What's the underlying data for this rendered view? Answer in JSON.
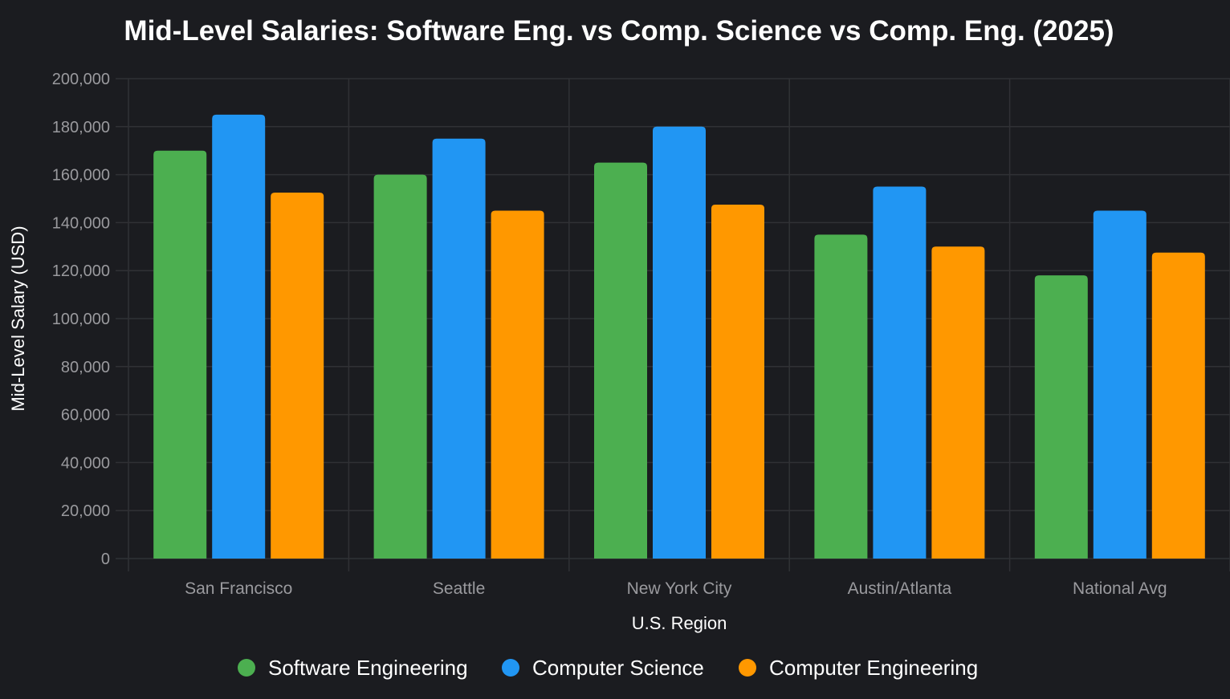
{
  "chart_data": {
    "type": "bar",
    "title": "Mid-Level Salaries: Software Eng. vs Comp. Science vs Comp. Eng. (2025)",
    "xlabel": "U.S. Region",
    "ylabel": "Mid-Level Salary (USD)",
    "categories": [
      "San Francisco",
      "Seattle",
      "New York City",
      "Austin/Atlanta",
      "National Avg"
    ],
    "ylim": [
      0,
      200000
    ],
    "yticks": [
      "0",
      "20,000",
      "40,000",
      "60,000",
      "80,000",
      "100,000",
      "120,000",
      "140,000",
      "160,000",
      "180,000",
      "200,000"
    ],
    "grid": true,
    "legend_position": "bottom",
    "series": [
      {
        "name": "Software Engineering",
        "color": "#4caf50",
        "values": [
          170000,
          160000,
          165000,
          135000,
          118000
        ]
      },
      {
        "name": "Computer Science",
        "color": "#2196f3",
        "values": [
          185000,
          175000,
          180000,
          155000,
          145000
        ]
      },
      {
        "name": "Computer Engineering",
        "color": "#ff9800",
        "values": [
          152500,
          145000,
          147500,
          130000,
          127500
        ]
      }
    ]
  }
}
